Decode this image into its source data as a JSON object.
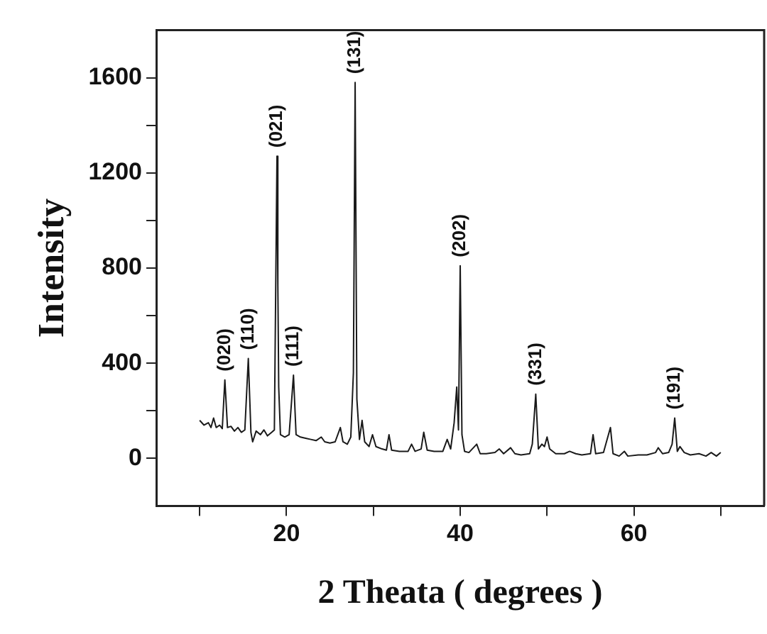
{
  "chart_data": {
    "type": "line",
    "xlabel": "2 Theata ( degrees )",
    "ylabel": "Intensity",
    "xlim": [
      5,
      75
    ],
    "ylim": [
      -200,
      1800
    ],
    "xticks": [
      {
        "value": 10,
        "label": null
      },
      20,
      {
        "value": 30,
        "label": null
      },
      40,
      {
        "value": 50,
        "label": null
      },
      60,
      {
        "value": 70,
        "label": null
      }
    ],
    "yticks": [
      0,
      {
        "value": 200,
        "label": null
      },
      400,
      {
        "value": 600,
        "label": null
      },
      800,
      {
        "value": 1000,
        "label": null
      },
      1200,
      {
        "value": 1400,
        "label": null
      },
      1600
    ],
    "grid": false,
    "legend": false,
    "marker": "none",
    "line_style": "solid",
    "annotations": [
      {
        "text": "(020)",
        "x": 12.9,
        "y": 330
      },
      {
        "text": "(110)",
        "x": 15.6,
        "y": 420
      },
      {
        "text": "(021)",
        "x": 18.9,
        "y": 1270
      },
      {
        "text": "(111)",
        "x": 20.8,
        "y": 350
      },
      {
        "text": "(131)",
        "x": 27.9,
        "y": 1580
      },
      {
        "text": "(202)",
        "x": 40.0,
        "y": 810
      },
      {
        "text": "(331)",
        "x": 48.7,
        "y": 270
      },
      {
        "text": "(191)",
        "x": 64.7,
        "y": 170
      }
    ],
    "series": [
      {
        "color": "#1a1a1a",
        "x": [
          10,
          10.5,
          11,
          11.3,
          11.6,
          11.9,
          12.3,
          12.6,
          12.9,
          13.2,
          13.6,
          14,
          14.4,
          14.8,
          15.2,
          15.6,
          15.9,
          16.1,
          16.5,
          17,
          17.4,
          17.8,
          18.3,
          18.6,
          18.9,
          19.0,
          19.1,
          19.3,
          19.8,
          20.3,
          20.8,
          21.1,
          21.6,
          22.2,
          22.8,
          23.4,
          24,
          24.4,
          25,
          25.6,
          26.2,
          26.5,
          27,
          27.4,
          27.7,
          27.9,
          28.1,
          28.4,
          28.7,
          29,
          29.5,
          29.9,
          30.3,
          31,
          31.5,
          31.8,
          32.1,
          33,
          34,
          34.4,
          34.8,
          35.5,
          35.8,
          36.2,
          37,
          38,
          38.5,
          38.9,
          39.3,
          39.6,
          39.8,
          40.0,
          40.2,
          40.5,
          41,
          41.9,
          42.3,
          43,
          44,
          44.5,
          45,
          45.8,
          46.3,
          47,
          48,
          48.3,
          48.7,
          49,
          49.4,
          49.7,
          50,
          50.3,
          51,
          52,
          52.6,
          53.3,
          54,
          55,
          55.3,
          55.6,
          56.5,
          57.3,
          57.6,
          58.3,
          58.9,
          59.3,
          60.5,
          61.5,
          62.5,
          62.8,
          63.3,
          64,
          64.4,
          64.7,
          65,
          65.3,
          65.8,
          66.5,
          67.5,
          68.3,
          68.9,
          69.5,
          70
        ],
        "values": [
          160,
          140,
          150,
          130,
          170,
          130,
          140,
          125,
          330,
          130,
          135,
          115,
          130,
          110,
          120,
          420,
          110,
          70,
          115,
          100,
          120,
          95,
          110,
          120,
          1270,
          730,
          300,
          100,
          90,
          100,
          350,
          100,
          90,
          85,
          80,
          75,
          90,
          70,
          65,
          70,
          130,
          70,
          60,
          90,
          360,
          1580,
          250,
          80,
          160,
          70,
          50,
          100,
          50,
          40,
          35,
          100,
          35,
          30,
          30,
          60,
          30,
          40,
          110,
          35,
          30,
          30,
          80,
          40,
          150,
          300,
          120,
          810,
          100,
          30,
          25,
          60,
          20,
          20,
          25,
          40,
          20,
          45,
          20,
          15,
          20,
          60,
          270,
          40,
          60,
          50,
          90,
          40,
          20,
          20,
          30,
          20,
          15,
          20,
          100,
          20,
          25,
          130,
          20,
          10,
          30,
          10,
          15,
          15,
          25,
          45,
          20,
          25,
          60,
          170,
          30,
          50,
          25,
          15,
          20,
          10,
          25,
          10,
          25
        ]
      }
    ]
  }
}
